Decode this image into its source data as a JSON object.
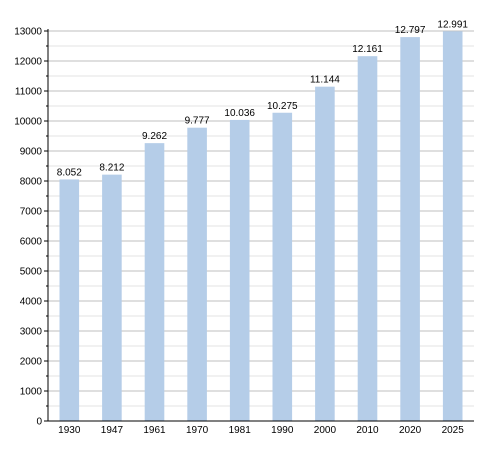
{
  "chart_data": {
    "type": "bar",
    "categories": [
      "1930",
      "1947",
      "1961",
      "1970",
      "1981",
      "1990",
      "2000",
      "2010",
      "2020",
      "2025"
    ],
    "values": [
      8052,
      8212,
      9262,
      9777,
      10036,
      10275,
      11144,
      12161,
      12797,
      12991
    ],
    "data_labels": [
      "8.052",
      "8.212",
      "9.262",
      "9.777",
      "10.036",
      "10.275",
      "11.144",
      "12.161",
      "12.797",
      "12.991"
    ],
    "y_ticks": [
      "0",
      "1000",
      "2000",
      "3000",
      "4000",
      "5000",
      "6000",
      "7000",
      "8000",
      "9000",
      "10000",
      "11000",
      "12000",
      "13000"
    ],
    "ylim": [
      0,
      13000
    ],
    "title": "",
    "xlabel": "",
    "ylabel": "",
    "grid": true,
    "bar_color": "#b5cde8",
    "grid_color": "#bfbfbf",
    "minor_grid_color": "#e3e3e3"
  }
}
